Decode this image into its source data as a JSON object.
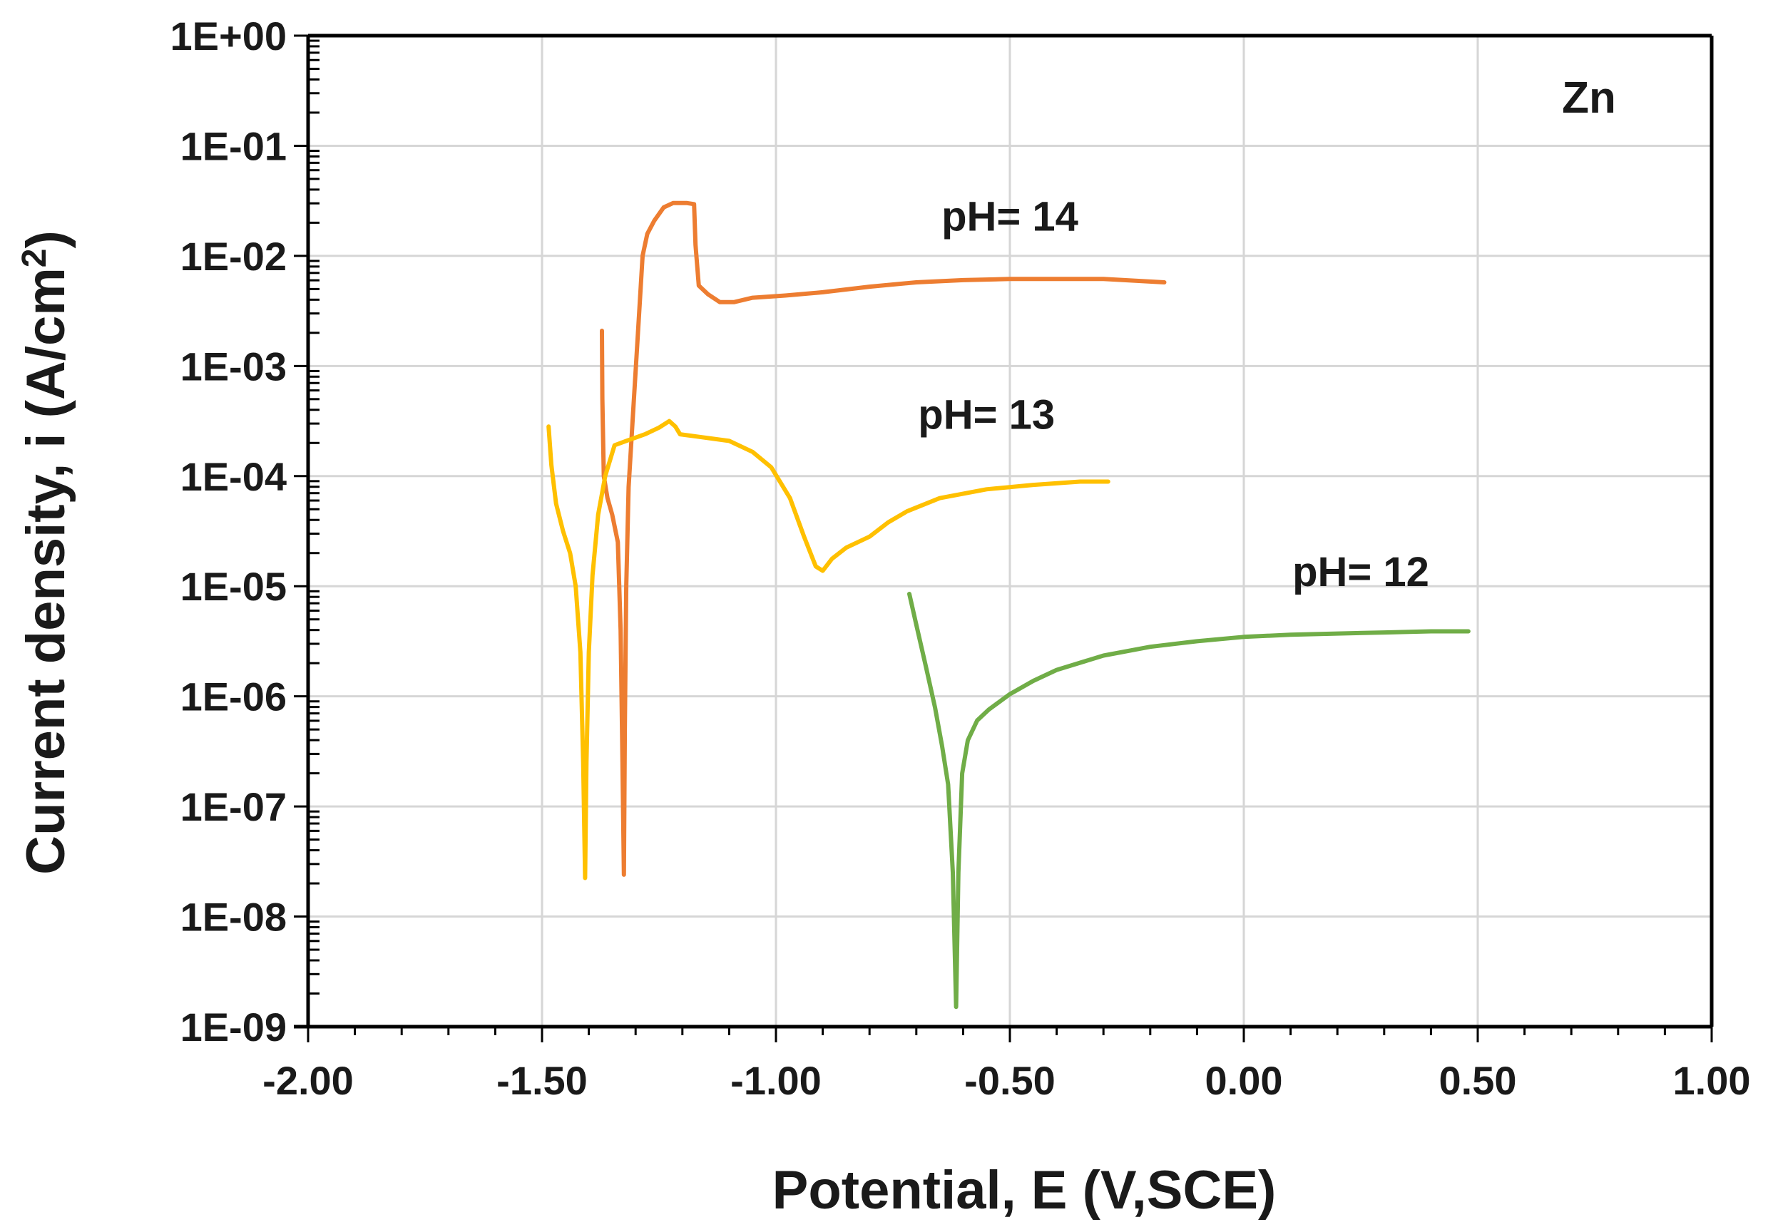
{
  "chart_data": {
    "type": "line",
    "title": "",
    "xlabel": "Potential, E (V,SCE)",
    "ylabel_prefix": "Current density, i  (A/cm",
    "ylabel_sup": "2",
    "ylabel_suffix": ")",
    "ylabel": "Current density, i  (A/cm2)",
    "xlim": [
      -2.0,
      1.0
    ],
    "ylim_log10": [
      -9,
      0
    ],
    "y_scale": "log",
    "grid": true,
    "x_ticks": [
      {
        "value": -2.0,
        "label": "-2.00"
      },
      {
        "value": -1.5,
        "label": "-1.50"
      },
      {
        "value": -1.0,
        "label": "-1.00"
      },
      {
        "value": -0.5,
        "label": "-0.50"
      },
      {
        "value": 0.0,
        "label": "0.00"
      },
      {
        "value": 0.5,
        "label": "0.50"
      },
      {
        "value": 1.0,
        "label": "1.00"
      }
    ],
    "y_ticks": [
      {
        "exp": 0,
        "label": "1E+00"
      },
      {
        "exp": -1,
        "label": "1E-01"
      },
      {
        "exp": -2,
        "label": "1E-02"
      },
      {
        "exp": -3,
        "label": "1E-03"
      },
      {
        "exp": -4,
        "label": "1E-04"
      },
      {
        "exp": -5,
        "label": "1E-05"
      },
      {
        "exp": -6,
        "label": "1E-06"
      },
      {
        "exp": -7,
        "label": "1E-07"
      },
      {
        "exp": -8,
        "label": "1E-08"
      },
      {
        "exp": -9,
        "label": "1E-09"
      }
    ],
    "panel_label": "Zn",
    "series": [
      {
        "name": "pH= 14",
        "color": "#ED7D31",
        "points": [
          [
            -1.372,
            -2.68
          ],
          [
            -1.371,
            -3.3
          ],
          [
            -1.368,
            -4.0
          ],
          [
            -1.36,
            -4.2
          ],
          [
            -1.35,
            -4.35
          ],
          [
            -1.338,
            -4.6
          ],
          [
            -1.332,
            -5.4
          ],
          [
            -1.328,
            -6.6
          ],
          [
            -1.325,
            -7.62
          ],
          [
            -1.323,
            -6.3
          ],
          [
            -1.32,
            -5.0
          ],
          [
            -1.315,
            -4.1
          ],
          [
            -1.305,
            -3.4
          ],
          [
            -1.295,
            -2.7
          ],
          [
            -1.285,
            -2.0
          ],
          [
            -1.275,
            -1.8
          ],
          [
            -1.26,
            -1.68
          ],
          [
            -1.24,
            -1.56
          ],
          [
            -1.22,
            -1.52
          ],
          [
            -1.19,
            -1.52
          ],
          [
            -1.175,
            -1.53
          ],
          [
            -1.172,
            -1.9
          ],
          [
            -1.165,
            -2.27
          ],
          [
            -1.145,
            -2.35
          ],
          [
            -1.12,
            -2.42
          ],
          [
            -1.09,
            -2.42
          ],
          [
            -1.05,
            -2.38
          ],
          [
            -0.98,
            -2.36
          ],
          [
            -0.9,
            -2.33
          ],
          [
            -0.8,
            -2.28
          ],
          [
            -0.7,
            -2.24
          ],
          [
            -0.6,
            -2.22
          ],
          [
            -0.5,
            -2.21
          ],
          [
            -0.4,
            -2.21
          ],
          [
            -0.3,
            -2.21
          ],
          [
            -0.17,
            -2.24
          ]
        ],
        "label_x": -0.5,
        "label_y_log10": -1.77
      },
      {
        "name": "pH= 13",
        "color": "#FFC000",
        "points": [
          [
            -1.486,
            -3.55
          ],
          [
            -1.48,
            -3.9
          ],
          [
            -1.47,
            -4.25
          ],
          [
            -1.455,
            -4.5
          ],
          [
            -1.44,
            -4.7
          ],
          [
            -1.428,
            -5.0
          ],
          [
            -1.418,
            -5.6
          ],
          [
            -1.412,
            -6.6
          ],
          [
            -1.408,
            -7.65
          ],
          [
            -1.405,
            -6.6
          ],
          [
            -1.4,
            -5.6
          ],
          [
            -1.392,
            -4.9
          ],
          [
            -1.38,
            -4.35
          ],
          [
            -1.365,
            -4.0
          ],
          [
            -1.345,
            -3.72
          ],
          [
            -1.32,
            -3.68
          ],
          [
            -1.28,
            -3.62
          ],
          [
            -1.25,
            -3.56
          ],
          [
            -1.228,
            -3.5
          ],
          [
            -1.215,
            -3.55
          ],
          [
            -1.205,
            -3.62
          ],
          [
            -1.17,
            -3.64
          ],
          [
            -1.1,
            -3.68
          ],
          [
            -1.05,
            -3.78
          ],
          [
            -1.01,
            -3.92
          ],
          [
            -0.97,
            -4.2
          ],
          [
            -0.94,
            -4.55
          ],
          [
            -0.915,
            -4.82
          ],
          [
            -0.9,
            -4.86
          ],
          [
            -0.88,
            -4.75
          ],
          [
            -0.85,
            -4.65
          ],
          [
            -0.8,
            -4.55
          ],
          [
            -0.76,
            -4.42
          ],
          [
            -0.72,
            -4.32
          ],
          [
            -0.65,
            -4.2
          ],
          [
            -0.55,
            -4.12
          ],
          [
            -0.45,
            -4.08
          ],
          [
            -0.35,
            -4.05
          ],
          [
            -0.29,
            -4.05
          ]
        ],
        "label_x": -0.55,
        "label_y_log10": -3.57
      },
      {
        "name": "pH= 12",
        "color": "#70AD47",
        "points": [
          [
            -0.715,
            -5.07
          ],
          [
            -0.7,
            -5.35
          ],
          [
            -0.68,
            -5.72
          ],
          [
            -0.66,
            -6.1
          ],
          [
            -0.645,
            -6.45
          ],
          [
            -0.632,
            -6.8
          ],
          [
            -0.622,
            -7.6
          ],
          [
            -0.615,
            -8.82
          ],
          [
            -0.61,
            -7.6
          ],
          [
            -0.602,
            -6.7
          ],
          [
            -0.59,
            -6.4
          ],
          [
            -0.57,
            -6.22
          ],
          [
            -0.545,
            -6.12
          ],
          [
            -0.5,
            -5.98
          ],
          [
            -0.45,
            -5.86
          ],
          [
            -0.4,
            -5.76
          ],
          [
            -0.3,
            -5.63
          ],
          [
            -0.2,
            -5.55
          ],
          [
            -0.1,
            -5.5
          ],
          [
            0.0,
            -5.46
          ],
          [
            0.1,
            -5.44
          ],
          [
            0.2,
            -5.43
          ],
          [
            0.3,
            -5.42
          ],
          [
            0.4,
            -5.41
          ],
          [
            0.48,
            -5.41
          ]
        ],
        "label_x": 0.25,
        "label_y_log10": -5.0
      }
    ]
  }
}
